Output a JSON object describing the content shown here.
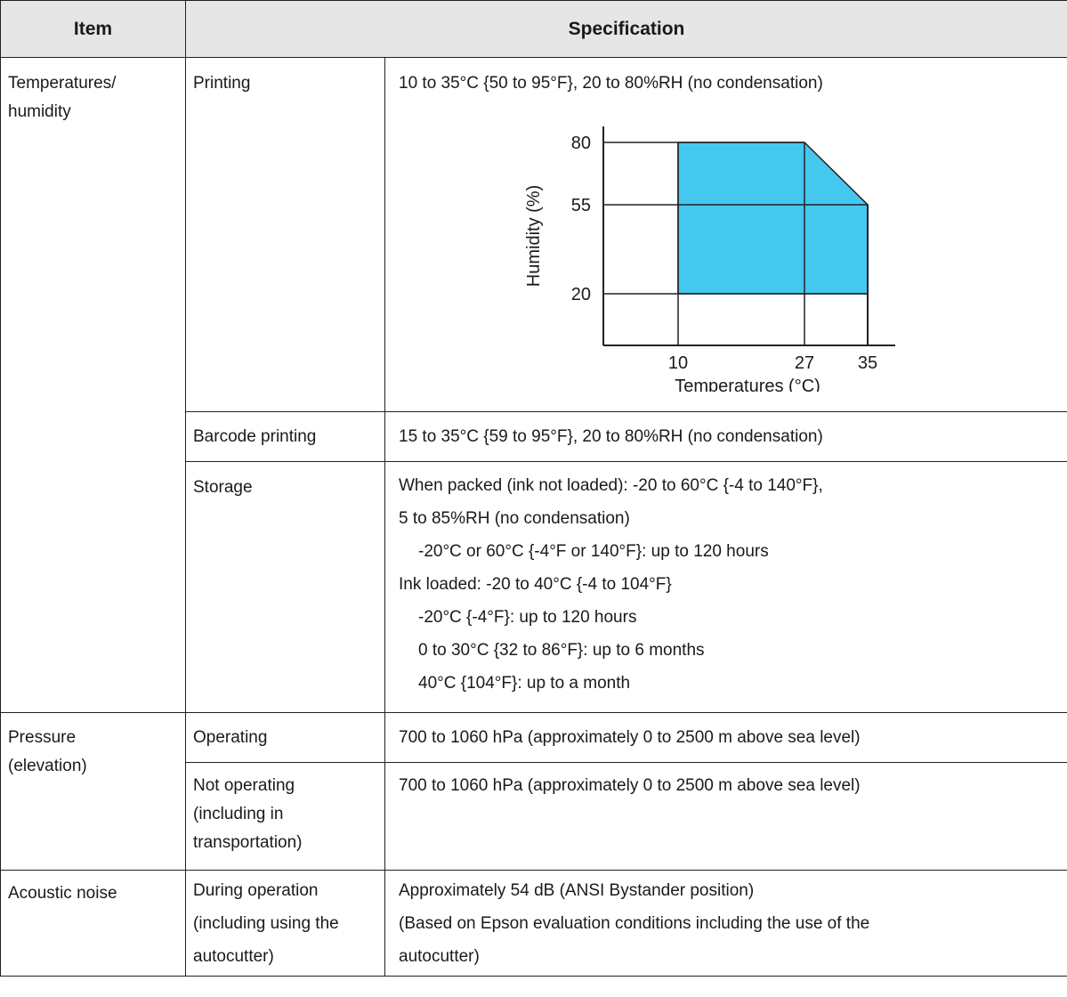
{
  "header": {
    "item": "Item",
    "specification": "Specification"
  },
  "rows": {
    "temp_humidity": {
      "item": "Temperatures/ humidity",
      "printing": {
        "label": "Printing",
        "text": "10 to 35°C {50 to 95°F}, 20 to 80%RH (no condensation)"
      },
      "barcode": {
        "label": "Barcode printing",
        "text": "15 to 35°C {59 to 95°F}, 20 to 80%RH (no condensation)"
      },
      "storage": {
        "label": "Storage",
        "lines": [
          "When packed (ink not loaded): -20 to 60°C {-4 to 140°F},",
          "5 to 85%RH (no condensation)",
          "-20°C or 60°C {-4°F or 140°F}: up to 120 hours",
          "Ink loaded: -20 to 40°C {-4 to 104°F}",
          "-20°C {-4°F}: up to 120 hours",
          "0 to 30°C {32 to 86°F}: up to 6 months",
          "40°C {104°F}: up to a month"
        ]
      }
    },
    "pressure": {
      "item": "Pressure (elevation)",
      "operating": {
        "label": "Operating",
        "text": "700 to 1060 hPa (approximately 0 to 2500 m above sea level)"
      },
      "not_operating": {
        "label": "Not operating (including in transportation)",
        "text": "700 to 1060 hPa (approximately 0 to 2500 m above sea level)"
      }
    },
    "acoustic": {
      "item": "Acoustic noise",
      "during": {
        "label": "During operation (including using the autocutter)",
        "lines": [
          "Approximately 54 dB (ANSI Bystander position)",
          "(Based on Epson evaluation conditions including the use of the autocutter)"
        ]
      }
    }
  },
  "chart_data": {
    "type": "area",
    "xlabel": "Temperatures (°C)",
    "ylabel": "Humidity (%)",
    "x_ticks": [
      "10",
      "27",
      "35"
    ],
    "y_ticks": [
      "80",
      "55",
      "20"
    ],
    "region": {
      "x": [
        10,
        27,
        35,
        35,
        10
      ],
      "y": [
        80,
        80,
        55,
        20,
        20
      ]
    },
    "fill_color": "#45c8f0",
    "grid": true
  }
}
